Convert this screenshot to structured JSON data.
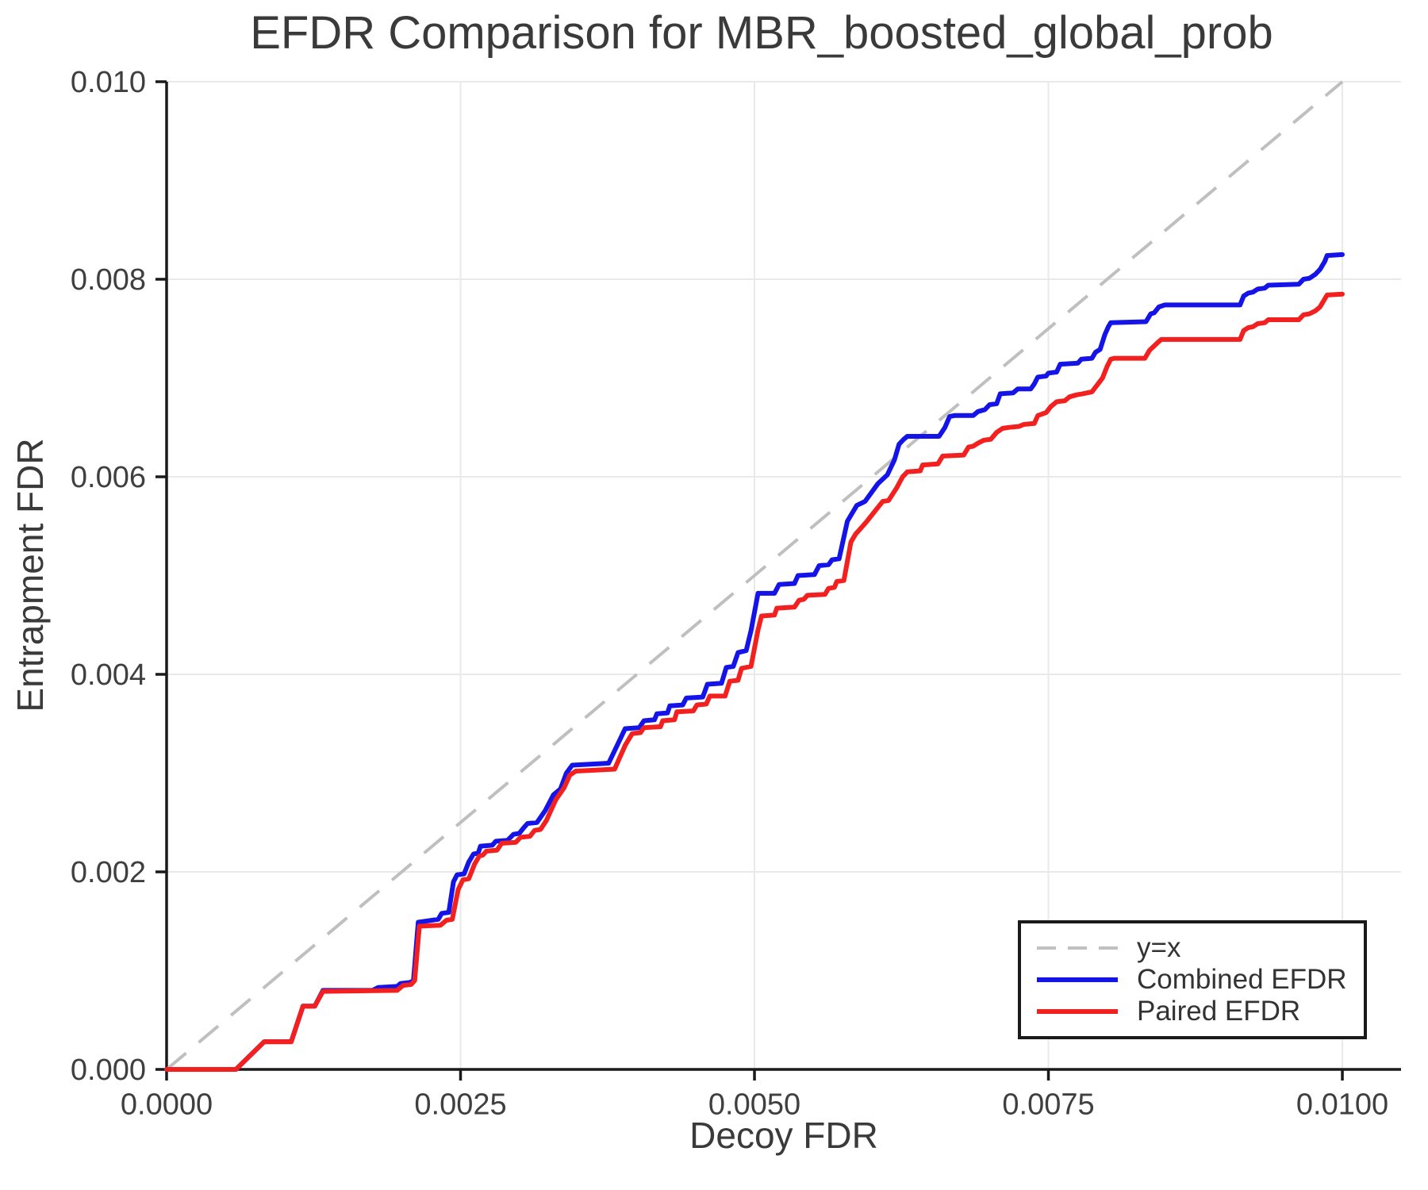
{
  "chart_data": {
    "type": "line",
    "title": "EFDR Comparison for MBR_boosted_global_prob",
    "xlabel": "Decoy FDR",
    "ylabel": "Entrapment FDR",
    "xlim": [
      0,
      0.010499
    ],
    "ylim": [
      0,
      0.01
    ],
    "grid": true,
    "legend": {
      "position": "lower right",
      "entries": [
        {
          "label": "y=x",
          "color": "#c0c0c0",
          "dash": true
        },
        {
          "label": "Combined EFDR",
          "color": "#1414e8",
          "dash": false
        },
        {
          "label": "Paired EFDR",
          "color": "#f32020",
          "dash": false
        }
      ]
    },
    "colors": {
      "grid": "#e9e9e9",
      "axis": "#1a1a1a",
      "tick_text": "#3f3f3f",
      "title_text": "#3a3a3a",
      "diagonal": "#bfbfbf",
      "combined": "#1414e8",
      "paired": "#f32020"
    },
    "x_ticks": {
      "values": [
        0,
        0.0025,
        0.005,
        0.0075,
        0.01
      ],
      "labels": [
        "0.0000",
        "0.0025",
        "0.0050",
        "0.0075",
        "0.0100"
      ]
    },
    "y_ticks": {
      "values": [
        0,
        0.002,
        0.004,
        0.006,
        0.008,
        0.01
      ],
      "labels": [
        "0.000",
        "0.002",
        "0.004",
        "0.006",
        "0.008",
        "0.010"
      ]
    },
    "series": [
      {
        "name": "y=x",
        "color": "#bfbfbf",
        "dash": true,
        "width": 4,
        "points": [
          [
            0,
            0
          ],
          [
            0.01,
            0.01
          ]
        ]
      },
      {
        "name": "Combined EFDR",
        "color": "#1414e8",
        "dash": false,
        "width": 6,
        "points": [
          [
            0,
            0
          ],
          [
            0.00059,
            0
          ],
          [
            0.00083,
            0.00028
          ],
          [
            0.00106,
            0.00028
          ],
          [
            0.00116,
            0.00064
          ],
          [
            0.00126,
            0.00064
          ],
          [
            0.00133,
            0.0008
          ],
          [
            0.00175,
            0.0008
          ],
          [
            0.0018,
            0.00083
          ],
          [
            0.00196,
            0.00084
          ],
          [
            0.00199,
            0.00087
          ],
          [
            0.00207,
            0.00088
          ],
          [
            0.0021,
            0.0009
          ],
          [
            0.00214,
            0.00149
          ],
          [
            0.00231,
            0.00152
          ],
          [
            0.00234,
            0.00158
          ],
          [
            0.0024,
            0.00159
          ],
          [
            0.00244,
            0.0019
          ],
          [
            0.00247,
            0.00197
          ],
          [
            0.00253,
            0.00198
          ],
          [
            0.00257,
            0.0021
          ],
          [
            0.00261,
            0.00218
          ],
          [
            0.00265,
            0.00219
          ],
          [
            0.00267,
            0.00226
          ],
          [
            0.00277,
            0.00227
          ],
          [
            0.0028,
            0.00231
          ],
          [
            0.0029,
            0.00232
          ],
          [
            0.00295,
            0.00238
          ],
          [
            0.003,
            0.00239
          ],
          [
            0.00304,
            0.00245
          ],
          [
            0.00307,
            0.00249
          ],
          [
            0.00315,
            0.0025
          ],
          [
            0.00322,
            0.00262
          ],
          [
            0.00329,
            0.00278
          ],
          [
            0.00335,
            0.00284
          ],
          [
            0.0034,
            0.003
          ],
          [
            0.00345,
            0.00308
          ],
          [
            0.00376,
            0.0031
          ],
          [
            0.0039,
            0.00345
          ],
          [
            0.00402,
            0.00346
          ],
          [
            0.00406,
            0.00353
          ],
          [
            0.00415,
            0.00354
          ],
          [
            0.00417,
            0.0036
          ],
          [
            0.00426,
            0.00361
          ],
          [
            0.00428,
            0.00368
          ],
          [
            0.00439,
            0.00369
          ],
          [
            0.00442,
            0.00376
          ],
          [
            0.00456,
            0.00377
          ],
          [
            0.0046,
            0.0039
          ],
          [
            0.00472,
            0.00391
          ],
          [
            0.00476,
            0.00407
          ],
          [
            0.00482,
            0.00408
          ],
          [
            0.00486,
            0.00422
          ],
          [
            0.00493,
            0.00424
          ],
          [
            0.00497,
            0.00444
          ],
          [
            0.00503,
            0.00482
          ],
          [
            0.00517,
            0.00482
          ],
          [
            0.00521,
            0.00491
          ],
          [
            0.00534,
            0.00492
          ],
          [
            0.00537,
            0.005
          ],
          [
            0.00551,
            0.00501
          ],
          [
            0.00555,
            0.0051
          ],
          [
            0.00563,
            0.00511
          ],
          [
            0.00566,
            0.00516
          ],
          [
            0.00572,
            0.00517
          ],
          [
            0.00579,
            0.00555
          ],
          [
            0.00587,
            0.00571
          ],
          [
            0.00594,
            0.00575
          ],
          [
            0.00605,
            0.00593
          ],
          [
            0.00613,
            0.00602
          ],
          [
            0.00619,
            0.00617
          ],
          [
            0.00623,
            0.00633
          ],
          [
            0.00627,
            0.00638
          ],
          [
            0.0063,
            0.00641
          ],
          [
            0.00657,
            0.00641
          ],
          [
            0.00662,
            0.0065
          ],
          [
            0.00666,
            0.00661
          ],
          [
            0.0067,
            0.00662
          ],
          [
            0.00686,
            0.00662
          ],
          [
            0.0069,
            0.00666
          ],
          [
            0.00696,
            0.00668
          ],
          [
            0.007,
            0.00673
          ],
          [
            0.00706,
            0.00674
          ],
          [
            0.00709,
            0.00684
          ],
          [
            0.0072,
            0.00685
          ],
          [
            0.00724,
            0.00689
          ],
          [
            0.00735,
            0.00689
          ],
          [
            0.00738,
            0.00694
          ],
          [
            0.00741,
            0.00701
          ],
          [
            0.00748,
            0.00702
          ],
          [
            0.0075,
            0.00705
          ],
          [
            0.00757,
            0.00706
          ],
          [
            0.0076,
            0.00714
          ],
          [
            0.00775,
            0.00715
          ],
          [
            0.00778,
            0.00719
          ],
          [
            0.00787,
            0.0072
          ],
          [
            0.0079,
            0.00726
          ],
          [
            0.00794,
            0.00729
          ],
          [
            0.00798,
            0.00744
          ],
          [
            0.00801,
            0.00752
          ],
          [
            0.00803,
            0.00756
          ],
          [
            0.00833,
            0.00757
          ],
          [
            0.00837,
            0.00765
          ],
          [
            0.0084,
            0.00766
          ],
          [
            0.00844,
            0.00772
          ],
          [
            0.00849,
            0.00774
          ],
          [
            0.00913,
            0.00774
          ],
          [
            0.00916,
            0.00783
          ],
          [
            0.0092,
            0.00786
          ],
          [
            0.00924,
            0.00787
          ],
          [
            0.00928,
            0.0079
          ],
          [
            0.00934,
            0.00791
          ],
          [
            0.00937,
            0.00794
          ],
          [
            0.00963,
            0.00795
          ],
          [
            0.00967,
            0.008
          ],
          [
            0.00972,
            0.00801
          ],
          [
            0.00977,
            0.00805
          ],
          [
            0.00981,
            0.0081
          ],
          [
            0.00985,
            0.00818
          ],
          [
            0.00987,
            0.00824
          ],
          [
            0.01,
            0.00825
          ]
        ]
      },
      {
        "name": "Paired EFDR",
        "color": "#f32020",
        "dash": false,
        "width": 6,
        "points": [
          [
            0,
            0
          ],
          [
            0.00059,
            0
          ],
          [
            0.00083,
            0.00028
          ],
          [
            0.00106,
            0.00028
          ],
          [
            0.00116,
            0.00064
          ],
          [
            0.00126,
            0.00064
          ],
          [
            0.00133,
            0.00079
          ],
          [
            0.00196,
            0.0008
          ],
          [
            0.00201,
            0.00085
          ],
          [
            0.00208,
            0.00086
          ],
          [
            0.00211,
            0.0009
          ],
          [
            0.00215,
            0.00145
          ],
          [
            0.00233,
            0.00146
          ],
          [
            0.00238,
            0.00151
          ],
          [
            0.00243,
            0.00152
          ],
          [
            0.00248,
            0.00182
          ],
          [
            0.00252,
            0.00192
          ],
          [
            0.00257,
            0.00193
          ],
          [
            0.00262,
            0.00208
          ],
          [
            0.00266,
            0.00216
          ],
          [
            0.00269,
            0.00217
          ],
          [
            0.00272,
            0.00221
          ],
          [
            0.00281,
            0.00222
          ],
          [
            0.00285,
            0.00229
          ],
          [
            0.00297,
            0.0023
          ],
          [
            0.00301,
            0.00235
          ],
          [
            0.00309,
            0.00236
          ],
          [
            0.00313,
            0.00242
          ],
          [
            0.00318,
            0.00243
          ],
          [
            0.00323,
            0.00252
          ],
          [
            0.00331,
            0.00273
          ],
          [
            0.00338,
            0.00285
          ],
          [
            0.00343,
            0.00298
          ],
          [
            0.00348,
            0.00302
          ],
          [
            0.00381,
            0.00304
          ],
          [
            0.0039,
            0.00328
          ],
          [
            0.00396,
            0.0034
          ],
          [
            0.00403,
            0.00341
          ],
          [
            0.00406,
            0.00346
          ],
          [
            0.0042,
            0.00347
          ],
          [
            0.00422,
            0.00353
          ],
          [
            0.00432,
            0.00354
          ],
          [
            0.00434,
            0.00362
          ],
          [
            0.00448,
            0.00363
          ],
          [
            0.00451,
            0.00369
          ],
          [
            0.00459,
            0.0037
          ],
          [
            0.00462,
            0.00378
          ],
          [
            0.00475,
            0.00378
          ],
          [
            0.00479,
            0.00393
          ],
          [
            0.00486,
            0.00394
          ],
          [
            0.00489,
            0.00406
          ],
          [
            0.00497,
            0.00408
          ],
          [
            0.00503,
            0.00445
          ],
          [
            0.00506,
            0.00459
          ],
          [
            0.00517,
            0.0046
          ],
          [
            0.00519,
            0.00467
          ],
          [
            0.00534,
            0.00468
          ],
          [
            0.00538,
            0.00475
          ],
          [
            0.00542,
            0.00476
          ],
          [
            0.00545,
            0.0048
          ],
          [
            0.0056,
            0.00481
          ],
          [
            0.00563,
            0.00487
          ],
          [
            0.00568,
            0.00488
          ],
          [
            0.0057,
            0.00494
          ],
          [
            0.00576,
            0.00495
          ],
          [
            0.00582,
            0.00534
          ],
          [
            0.00586,
            0.00542
          ],
          [
            0.00595,
            0.00554
          ],
          [
            0.00603,
            0.00566
          ],
          [
            0.00609,
            0.00575
          ],
          [
            0.00614,
            0.00576
          ],
          [
            0.00621,
            0.00589
          ],
          [
            0.00626,
            0.006
          ],
          [
            0.0063,
            0.00605
          ],
          [
            0.00641,
            0.00606
          ],
          [
            0.00643,
            0.00612
          ],
          [
            0.00656,
            0.00613
          ],
          [
            0.0066,
            0.00621
          ],
          [
            0.00678,
            0.00622
          ],
          [
            0.00682,
            0.0063
          ],
          [
            0.00686,
            0.00631
          ],
          [
            0.0069,
            0.00634
          ],
          [
            0.00695,
            0.00637
          ],
          [
            0.00701,
            0.00638
          ],
          [
            0.00706,
            0.00645
          ],
          [
            0.00711,
            0.00649
          ],
          [
            0.00716,
            0.0065
          ],
          [
            0.00725,
            0.00651
          ],
          [
            0.00729,
            0.00653
          ],
          [
            0.00738,
            0.00654
          ],
          [
            0.00741,
            0.00662
          ],
          [
            0.00748,
            0.00665
          ],
          [
            0.00752,
            0.00671
          ],
          [
            0.00757,
            0.00676
          ],
          [
            0.00764,
            0.00677
          ],
          [
            0.00768,
            0.00681
          ],
          [
            0.00774,
            0.00683
          ],
          [
            0.00779,
            0.00684
          ],
          [
            0.00787,
            0.00686
          ],
          [
            0.00796,
            0.007
          ],
          [
            0.008,
            0.00712
          ],
          [
            0.00803,
            0.00719
          ],
          [
            0.00806,
            0.0072
          ],
          [
            0.00832,
            0.0072
          ],
          [
            0.00836,
            0.00728
          ],
          [
            0.00843,
            0.00736
          ],
          [
            0.00846,
            0.00739
          ],
          [
            0.00913,
            0.00739
          ],
          [
            0.00916,
            0.00748
          ],
          [
            0.0092,
            0.00751
          ],
          [
            0.00924,
            0.00752
          ],
          [
            0.00928,
            0.00755
          ],
          [
            0.00934,
            0.00756
          ],
          [
            0.00937,
            0.00759
          ],
          [
            0.00963,
            0.00759
          ],
          [
            0.00967,
            0.00764
          ],
          [
            0.00972,
            0.00765
          ],
          [
            0.00977,
            0.00768
          ],
          [
            0.00981,
            0.00772
          ],
          [
            0.00985,
            0.0078
          ],
          [
            0.00987,
            0.00784
          ],
          [
            0.01,
            0.00785
          ]
        ]
      }
    ]
  }
}
